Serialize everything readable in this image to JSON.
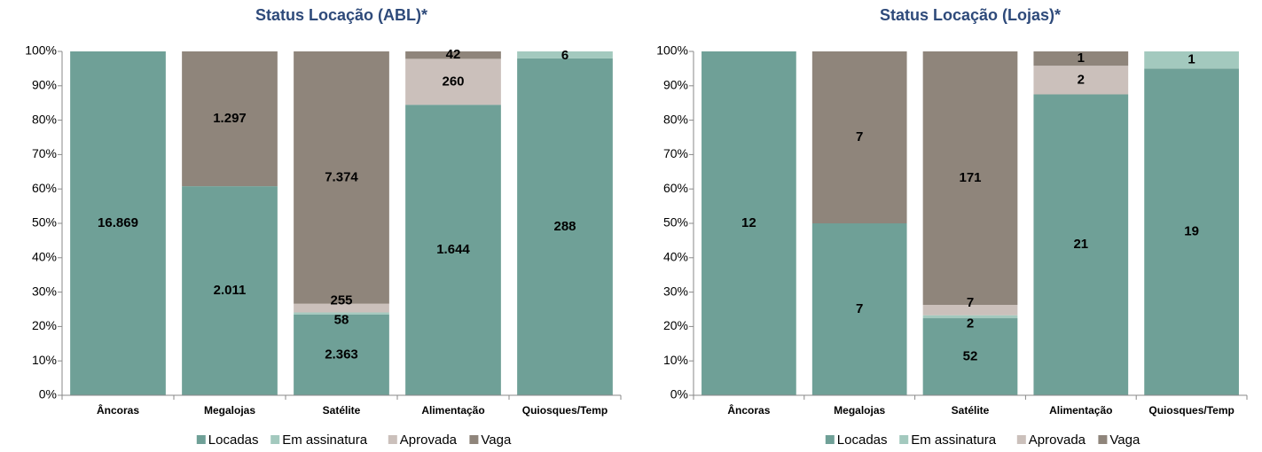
{
  "chart_data": [
    {
      "type": "stacked-bar-100",
      "title": "Status Locação (ABL)*",
      "categories": [
        "Âncoras",
        "Megalojas",
        "Satélite",
        "Alimentação",
        "Quiosques/Temp"
      ],
      "series": [
        {
          "name": "Locadas",
          "color": "#6fa097",
          "values": [
            16869,
            2011,
            2363,
            1644,
            288
          ],
          "value_labels": [
            "16.869",
            "2.011",
            "2.363",
            "1.644",
            "288"
          ]
        },
        {
          "name": "Em assinatura",
          "color": "#a3c9be",
          "values": [
            0,
            0,
            58,
            0,
            6
          ],
          "value_labels": [
            null,
            null,
            "58",
            null,
            "6"
          ]
        },
        {
          "name": "Aprovada",
          "color": "#cbc0bb",
          "values": [
            0,
            0,
            255,
            260,
            0
          ],
          "value_labels": [
            null,
            null,
            "255",
            "260",
            null
          ]
        },
        {
          "name": "Vaga",
          "color": "#8f857b",
          "values": [
            0,
            1297,
            7374,
            42,
            0
          ],
          "value_labels": [
            null,
            "1.297",
            "7.374",
            "42",
            null
          ]
        }
      ],
      "ylim": [
        0,
        100
      ],
      "yticks": [
        {
          "value": 0,
          "label": "0%"
        },
        {
          "value": 10,
          "label": "10%"
        },
        {
          "value": 20,
          "label": "20%"
        },
        {
          "value": 30,
          "label": "30%"
        },
        {
          "value": 40,
          "label": "40%"
        },
        {
          "value": 50,
          "label": "50%"
        },
        {
          "value": 60,
          "label": "60%"
        },
        {
          "value": 70,
          "label": "70%"
        },
        {
          "value": 80,
          "label": "80%"
        },
        {
          "value": 90,
          "label": "90%"
        },
        {
          "value": 100,
          "label": "100%"
        }
      ],
      "legend": "bottom"
    },
    {
      "type": "stacked-bar-100",
      "title": "Status Locação (Lojas)*",
      "categories": [
        "Âncoras",
        "Megalojas",
        "Satélite",
        "Alimentação",
        "Quiosques/Temp"
      ],
      "series": [
        {
          "name": "Locadas",
          "color": "#6fa097",
          "values": [
            12,
            7,
            52,
            21,
            19
          ]
        },
        {
          "name": "Em assinatura",
          "color": "#a3c9be",
          "values": [
            0,
            0,
            2,
            0,
            1
          ],
          "value_labels": [
            null,
            null,
            "2",
            null,
            "1"
          ]
        },
        {
          "name": "Aprovada",
          "color": "#cbc0bb",
          "values": [
            0,
            0,
            7,
            2,
            0
          ],
          "value_labels": [
            null,
            null,
            "7",
            "2",
            null
          ]
        },
        {
          "name": "Vaga",
          "color": "#8f857b",
          "values": [
            0,
            7,
            171,
            1,
            0
          ],
          "value_labels": [
            null,
            "7",
            "171",
            "1",
            null
          ]
        }
      ],
      "ylim": [
        0,
        100
      ],
      "yticks": [
        {
          "value": 0,
          "label": "0%"
        },
        {
          "value": 10,
          "label": "10%"
        },
        {
          "value": 20,
          "label": "20%"
        },
        {
          "value": 30,
          "label": "30%"
        },
        {
          "value": 40,
          "label": "40%"
        },
        {
          "value": 50,
          "label": "50%"
        },
        {
          "value": 60,
          "label": "60%"
        },
        {
          "value": 70,
          "label": "70%"
        },
        {
          "value": 80,
          "label": "80%"
        },
        {
          "value": 90,
          "label": "90%"
        },
        {
          "value": 100,
          "label": "100%"
        }
      ],
      "legend": "bottom"
    }
  ]
}
